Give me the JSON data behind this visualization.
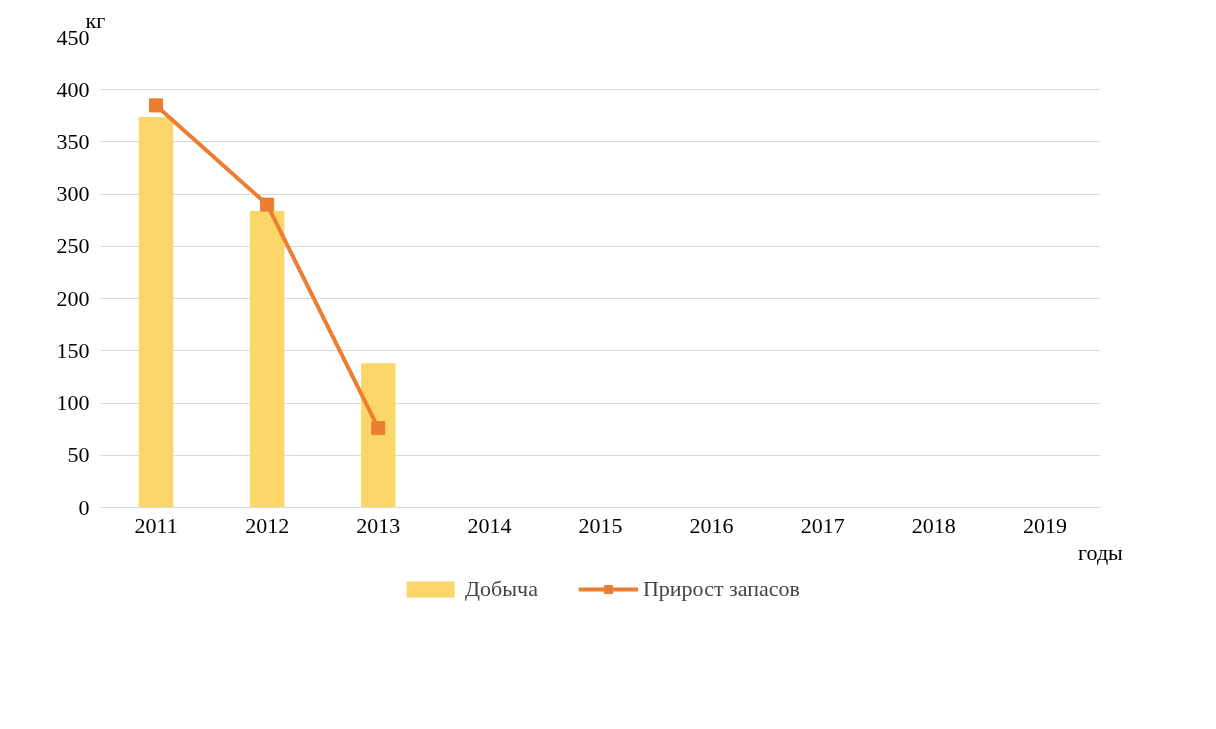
{
  "chart_data": {
    "type": "bar",
    "categories": [
      "2011",
      "2012",
      "2013",
      "2014",
      "2015",
      "2016",
      "2017",
      "2018",
      "2019"
    ],
    "xlabel": "годы",
    "ylabel": "кг",
    "series": [
      {
        "name": "Добыча",
        "color": "#fcd668",
        "values": [
          374,
          284,
          138,
          null,
          null,
          null,
          null,
          null,
          null
        ]
      },
      {
        "name": "Прирост запасов",
        "type": "line",
        "color": "#ed7d31",
        "marker": "square",
        "line_style": "solid",
        "values": [
          385,
          290,
          76,
          null,
          null,
          null,
          null,
          null,
          null
        ]
      }
    ],
    "ylim": [
      0,
      450
    ],
    "yticks": [
      0,
      50,
      100,
      150,
      200,
      250,
      300,
      350,
      400,
      450
    ],
    "grid": "y",
    "legend": "bottom"
  }
}
